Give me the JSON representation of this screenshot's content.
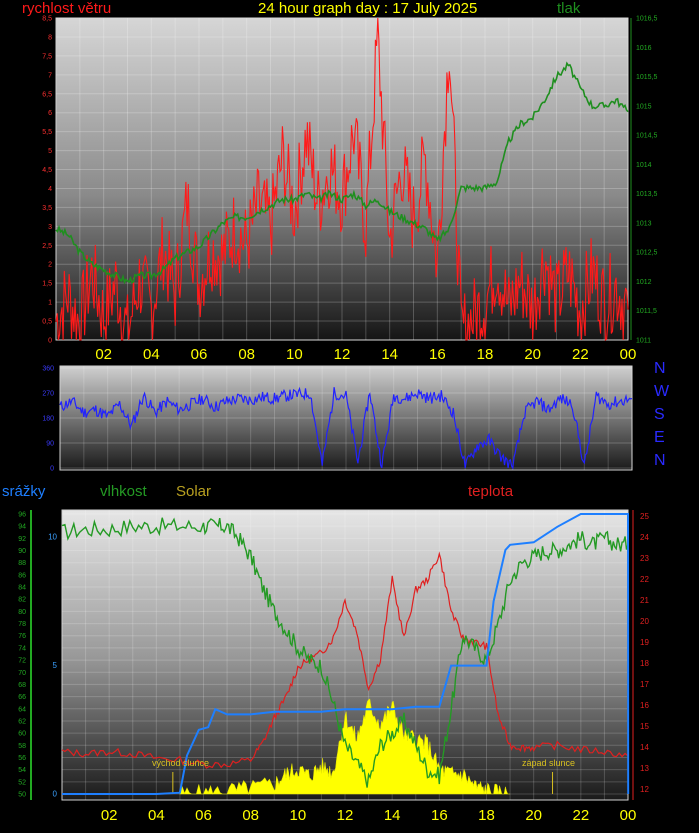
{
  "header": {
    "title": "24 hour graph day : 17 July 2025",
    "wind_label": "rychlost větru",
    "pressure_label": "tlak",
    "rain_label": "srážky",
    "humidity_label": "vlhkost",
    "solar_label": "Solar",
    "temp_label": "teplota",
    "sunrise_label": "východ slunce",
    "sunset_label": "západ slunce"
  },
  "colors": {
    "wind": "#ff1a1a",
    "pressure": "#1f8f1f",
    "direction": "#2222ff",
    "rain": "#1e7fff",
    "humidity": "#249a24",
    "solar": "#ffff00",
    "temperature": "#e02020",
    "title": "#ffff00",
    "time_ticks": "#ffff00"
  },
  "direction_axis": {
    "compass": [
      "N",
      "W",
      "S",
      "E",
      "N"
    ],
    "ticks": [
      "360",
      "270",
      "180",
      "90",
      "0"
    ]
  },
  "chart_data": [
    {
      "type": "line",
      "title": "24 hour graph day : 17 July 2025",
      "x_ticks": [
        "02",
        "04",
        "06",
        "08",
        "10",
        "12",
        "14",
        "16",
        "18",
        "20",
        "22",
        "00"
      ],
      "xlim": [
        0,
        24
      ],
      "grid": true,
      "series": [
        {
          "name": "rychlost větru",
          "axis": "left",
          "ylim": [
            0,
            8.5
          ],
          "ticks": [
            "0",
            "0,5",
            "1",
            "1,5",
            "2",
            "2,5",
            "3",
            "3,5",
            "4",
            "4,5",
            "5",
            "5,5",
            "6",
            "6,5",
            "7",
            "7,5",
            "8",
            "8,5"
          ],
          "x": [
            0,
            0.5,
            1,
            1.5,
            2,
            2.5,
            3,
            3.5,
            4,
            4.5,
            5,
            5.5,
            6,
            6.5,
            7,
            7.5,
            8,
            8.5,
            9,
            9.5,
            10,
            10.5,
            11,
            11.5,
            12,
            12.5,
            13,
            13.5,
            14,
            14.5,
            15,
            15.5,
            16,
            16.5,
            17,
            17.5,
            18,
            18.5,
            19,
            19.5,
            20,
            20.5,
            21,
            21.5,
            22,
            22.5,
            23,
            23.5,
            24
          ],
          "values": [
            0.5,
            1.2,
            0.4,
            1.8,
            0.6,
            1.5,
            0.2,
            1.6,
            0.8,
            2.4,
            1.2,
            3.6,
            1.5,
            2.4,
            2.2,
            3.0,
            2.5,
            3.6,
            3.0,
            4.8,
            3.4,
            5.4,
            3.6,
            4.6,
            3.8,
            5.5,
            3.0,
            8.0,
            2.6,
            4.6,
            3.2,
            4.8,
            2.0,
            8.0,
            0.2,
            0.6,
            1.0,
            2.0,
            0.8,
            1.6,
            0.8,
            2.2,
            1.0,
            1.8,
            0.8,
            1.8,
            1.0,
            1.4,
            0.8
          ]
        },
        {
          "name": "tlak",
          "axis": "right",
          "ylim": [
            1011,
            1016.5
          ],
          "ticks": [
            "1011",
            "1011,5",
            "1012",
            "1012,5",
            "1013",
            "1013,5",
            "1014",
            "1014,5",
            "1015",
            "1015,5",
            "1016",
            "1016,5"
          ],
          "x": [
            0,
            0.5,
            1,
            1.5,
            2,
            2.5,
            3,
            3.5,
            4,
            4.5,
            5,
            5.5,
            6,
            6.5,
            7,
            7.5,
            8,
            8.5,
            9,
            9.5,
            10,
            10.5,
            11,
            11.5,
            12,
            12.5,
            13,
            13.5,
            14,
            14.5,
            15,
            15.5,
            16,
            16.5,
            17,
            17.5,
            18,
            18.5,
            19,
            19.5,
            20,
            20.5,
            21,
            21.5,
            22,
            22.5,
            23,
            23.5,
            24
          ],
          "values": [
            1012.9,
            1012.8,
            1012.5,
            1012.3,
            1012.2,
            1012.1,
            1012.0,
            1012.1,
            1012.1,
            1012.2,
            1012.4,
            1012.5,
            1012.6,
            1012.8,
            1013.0,
            1013.1,
            1013.1,
            1013.2,
            1013.3,
            1013.4,
            1013.4,
            1013.5,
            1013.4,
            1013.5,
            1013.4,
            1013.5,
            1013.3,
            1013.4,
            1013.2,
            1013.1,
            1013.0,
            1012.9,
            1012.7,
            1012.9,
            1013.6,
            1013.6,
            1013.6,
            1013.7,
            1014.4,
            1014.7,
            1014.8,
            1015.1,
            1015.5,
            1015.7,
            1015.3,
            1015.0,
            1015.0,
            1015.1,
            1014.9
          ]
        }
      ]
    },
    {
      "type": "line",
      "title": "",
      "x_ticks": [],
      "xlim": [
        0,
        24
      ],
      "grid": true,
      "series": [
        {
          "name": "",
          "ylim": [
            0,
            360
          ],
          "x": [
            0,
            0.5,
            1,
            1.5,
            2,
            2.5,
            3,
            3.5,
            4,
            4.5,
            5,
            5.5,
            6,
            6.5,
            7,
            7.5,
            8,
            8.5,
            9,
            9.5,
            10,
            10.5,
            11,
            11.5,
            12,
            12.5,
            13,
            13.5,
            14,
            14.5,
            15,
            15.5,
            16,
            16.5,
            17,
            17.5,
            18,
            18.5,
            19,
            19.5,
            20,
            20.5,
            21,
            21.5,
            22,
            22.5,
            23,
            23.5,
            24
          ],
          "values": [
            220,
            240,
            200,
            210,
            185,
            230,
            150,
            260,
            200,
            240,
            210,
            230,
            250,
            220,
            240,
            250,
            245,
            255,
            250,
            260,
            265,
            270,
            10,
            270,
            260,
            20,
            275,
            5,
            260,
            250,
            270,
            250,
            260,
            200,
            5,
            80,
            100,
            40,
            5,
            200,
            240,
            210,
            250,
            230,
            5,
            260,
            230,
            240,
            250
          ]
        }
      ]
    },
    {
      "type": "line",
      "title": "",
      "x_ticks": [
        "02",
        "04",
        "06",
        "08",
        "10",
        "12",
        "14",
        "16",
        "18",
        "20",
        "22",
        "00"
      ],
      "xlim": [
        0,
        24
      ],
      "grid": true,
      "series": [
        {
          "name": "srážky",
          "axis": "left_outer",
          "ylim": [
            0,
            10.9
          ],
          "ticks": [
            "0",
            "5",
            "10"
          ],
          "x": [
            0,
            1,
            2,
            3,
            4,
            5,
            5.3,
            5.8,
            6.2,
            6.5,
            7,
            8,
            9,
            10,
            11,
            12,
            13,
            14,
            15,
            16,
            16.5,
            17,
            18,
            18.3,
            18.8,
            19,
            20,
            21,
            22,
            23,
            24,
            24.01
          ],
          "values": [
            0,
            0,
            0,
            0,
            0,
            0.05,
            1.5,
            2.5,
            2.6,
            3.3,
            3.1,
            3.1,
            3.2,
            3.2,
            3.2,
            3.3,
            3.3,
            3.3,
            3.4,
            3.4,
            5.0,
            5.0,
            5.0,
            7.5,
            9.5,
            9.7,
            9.8,
            10.4,
            10.9,
            10.9,
            10.9,
            0
          ]
        },
        {
          "name": "vlhkost",
          "axis": "left_inner",
          "ylim": [
            50,
            96
          ],
          "ticks": [
            "50",
            "52",
            "54",
            "56",
            "58",
            "60",
            "62",
            "64",
            "66",
            "68",
            "70",
            "72",
            "74",
            "76",
            "78",
            "80",
            "82",
            "84",
            "86",
            "88",
            "90",
            "92",
            "94",
            "96"
          ],
          "x": [
            0,
            1,
            2,
            3,
            4,
            5,
            6,
            6.5,
            7,
            7.5,
            8,
            8.5,
            9,
            9.5,
            10,
            10.5,
            11,
            11.5,
            12,
            12.5,
            13,
            13.5,
            14,
            14.5,
            15,
            15.5,
            16,
            16.5,
            17,
            17.5,
            18,
            18.5,
            19,
            19.5,
            20,
            20.5,
            21,
            21.5,
            22,
            22.5,
            23,
            23.5,
            24
          ],
          "values": [
            93,
            93.5,
            93.5,
            94,
            94,
            94,
            94,
            94,
            94,
            92,
            89,
            84,
            80,
            77,
            74,
            72,
            71,
            65,
            58,
            55,
            52,
            58,
            60,
            62,
            58,
            54,
            53,
            64,
            76,
            74,
            72,
            78,
            85,
            88,
            89,
            90,
            90,
            91,
            92,
            91,
            92,
            91,
            91
          ]
        },
        {
          "name": "Solar",
          "axis": "none",
          "ylim": [
            0,
            100
          ],
          "x": [
            5,
            6,
            7,
            8,
            9,
            9.5,
            10,
            10.5,
            11,
            11.5,
            12,
            12.5,
            13,
            13.5,
            14,
            14.5,
            15,
            15.5,
            16,
            16.5,
            17,
            17.5,
            18,
            18.5,
            19
          ],
          "values": [
            0,
            1,
            3,
            6,
            10,
            20,
            25,
            18,
            28,
            22,
            78,
            55,
            90,
            70,
            88,
            60,
            55,
            50,
            25,
            20,
            20,
            8,
            4,
            1,
            0
          ]
        },
        {
          "name": "teplota",
          "axis": "right",
          "ylim": [
            11.5,
            25.3
          ],
          "ticks": [
            "12",
            "13",
            "14",
            "15",
            "16",
            "17",
            "18",
            "19",
            "20",
            "21",
            "22",
            "23",
            "24",
            "25"
          ],
          "x": [
            0,
            1,
            2,
            3,
            4,
            5,
            6,
            7,
            8,
            8.5,
            9,
            9.5,
            10,
            10.5,
            11,
            11.5,
            12,
            12.5,
            13,
            13.5,
            14,
            14.5,
            15,
            15.5,
            16,
            16.5,
            17,
            17.5,
            18,
            18.5,
            19,
            19.5,
            20,
            21,
            22,
            23,
            24
          ],
          "values": [
            13.8,
            13.7,
            13.8,
            13.7,
            13.5,
            13.4,
            13.2,
            13.2,
            13.4,
            14.2,
            15.4,
            16.4,
            17.8,
            18.2,
            18.5,
            19.2,
            21.0,
            19.5,
            16.8,
            18.2,
            22.0,
            19.2,
            21.5,
            22.0,
            23.2,
            20.5,
            19.2,
            19.0,
            18.8,
            15.5,
            14.1,
            14.0,
            14.0,
            14.1,
            13.9,
            13.8,
            13.6
          ]
        }
      ]
    }
  ]
}
